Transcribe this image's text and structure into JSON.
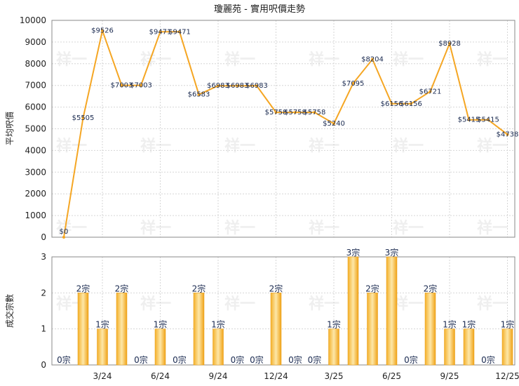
{
  "chart_data": [
    {
      "type": "line",
      "title": "瓊麗苑 - 實用呎價走勢",
      "ylabel": "平均呎價",
      "ylim": [
        0,
        10000
      ],
      "yticks": [
        0,
        1000,
        2000,
        3000,
        4000,
        5000,
        6000,
        7000,
        8000,
        9000,
        10000
      ],
      "values": [
        0,
        5505,
        9526,
        7003,
        7003,
        9471,
        9471,
        6583,
        6983,
        6983,
        6983,
        5758,
        5758,
        5758,
        5240,
        7095,
        8204,
        6156,
        6156,
        6721,
        8928,
        5415,
        5415,
        4738
      ],
      "labels": [
        "$0",
        "$5505",
        "$9526",
        "$7003",
        "$7003",
        "$9471",
        "$9471",
        "$6583",
        "$6983",
        "$6983",
        "$6983",
        "$5758",
        "$5758",
        "$5758",
        "$5240",
        "$7095",
        "$8204",
        "$6156",
        "$6156",
        "$6721",
        "$8928",
        "$5415",
        "$5415",
        "$4738"
      ],
      "color": "#f5a623"
    },
    {
      "type": "bar",
      "ylabel": "成交宗數",
      "ylim": [
        0,
        3
      ],
      "yticks": [
        0,
        1,
        2,
        3
      ],
      "values": [
        0,
        2,
        1,
        2,
        0,
        1,
        0,
        2,
        1,
        0,
        0,
        2,
        0,
        0,
        1,
        3,
        2,
        3,
        0,
        2,
        1,
        1,
        0,
        1
      ],
      "labels": [
        "0宗",
        "2宗",
        "1宗",
        "2宗",
        "0宗",
        "1宗",
        "0宗",
        "2宗",
        "1宗",
        "0宗",
        "0宗",
        "2宗",
        "0宗",
        "0宗",
        "1宗",
        "3宗",
        "2宗",
        "3宗",
        "0宗",
        "2宗",
        "1宗",
        "1宗",
        "0宗",
        "1宗"
      ],
      "xticks": [
        "3/24",
        "6/24",
        "9/24",
        "12/24",
        "3/25",
        "6/25",
        "9/25",
        "12/25"
      ],
      "xtick_index": [
        2,
        5,
        8,
        11,
        14,
        17,
        20,
        23
      ]
    }
  ],
  "watermark": "祥一"
}
